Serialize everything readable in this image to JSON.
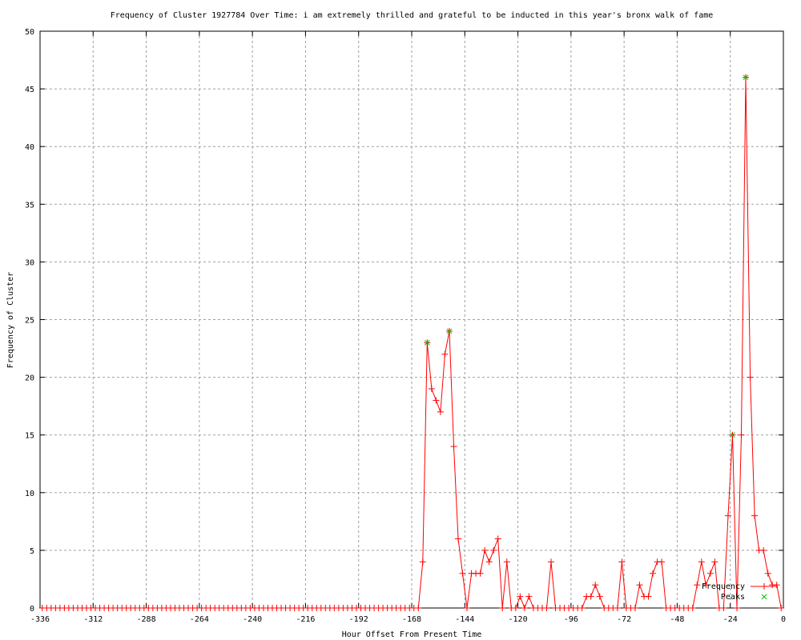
{
  "chart_data": {
    "type": "line",
    "title": "Frequency of Cluster 1927784 Over Time: i am extremely thrilled and grateful to be inducted in this year's bronx walk of fame",
    "xlabel": "Hour Offset From Present Time",
    "ylabel": "Frequency of Cluster",
    "xlim": [
      -336,
      0
    ],
    "ylim": [
      0,
      50
    ],
    "xticks": [
      -336,
      -312,
      -288,
      -264,
      -240,
      -216,
      -192,
      -168,
      -144,
      -120,
      -96,
      -72,
      -48,
      -24,
      0
    ],
    "yticks": [
      0,
      5,
      10,
      15,
      20,
      25,
      30,
      35,
      40,
      45,
      50
    ],
    "grid": true,
    "legend_placement": "bottom-right",
    "series": [
      {
        "name": "Frequency",
        "color": "#ff0000",
        "marker": "plus",
        "x": [
          -335,
          -333,
          -331,
          -329,
          -327,
          -325,
          -323,
          -321,
          -319,
          -317,
          -315,
          -313,
          -311,
          -309,
          -307,
          -305,
          -303,
          -301,
          -299,
          -297,
          -295,
          -293,
          -291,
          -289,
          -287,
          -285,
          -283,
          -281,
          -279,
          -277,
          -275,
          -273,
          -271,
          -269,
          -267,
          -265,
          -263,
          -261,
          -259,
          -257,
          -255,
          -253,
          -251,
          -249,
          -247,
          -245,
          -243,
          -241,
          -239,
          -237,
          -235,
          -233,
          -231,
          -229,
          -227,
          -225,
          -223,
          -221,
          -219,
          -217,
          -215,
          -213,
          -211,
          -209,
          -207,
          -205,
          -203,
          -201,
          -199,
          -197,
          -195,
          -193,
          -191,
          -189,
          -187,
          -185,
          -183,
          -181,
          -179,
          -177,
          -175,
          -173,
          -171,
          -169,
          -167,
          -165,
          -163,
          -161,
          -159,
          -157,
          -155,
          -153,
          -151,
          -149,
          -147,
          -145,
          -143,
          -141,
          -139,
          -137,
          -135,
          -133,
          -131,
          -129,
          -127,
          -125,
          -123,
          -121,
          -119,
          -117,
          -115,
          -113,
          -111,
          -109,
          -107,
          -105,
          -103,
          -101,
          -99,
          -97,
          -95,
          -93,
          -91,
          -89,
          -87,
          -85,
          -83,
          -81,
          -79,
          -77,
          -75,
          -73,
          -71,
          -69,
          -67,
          -65,
          -63,
          -61,
          -59,
          -57,
          -55,
          -53,
          -51,
          -49,
          -47,
          -45,
          -43,
          -41,
          -39,
          -37,
          -35,
          -33,
          -31,
          -29,
          -27,
          -25,
          -23,
          -21,
          -19,
          -17,
          -15,
          -13,
          -11,
          -9,
          -7,
          -5,
          -3,
          -1
        ],
        "values": [
          0,
          0,
          0,
          0,
          0,
          0,
          0,
          0,
          0,
          0,
          0,
          0,
          0,
          0,
          0,
          0,
          0,
          0,
          0,
          0,
          0,
          0,
          0,
          0,
          0,
          0,
          0,
          0,
          0,
          0,
          0,
          0,
          0,
          0,
          0,
          0,
          0,
          0,
          0,
          0,
          0,
          0,
          0,
          0,
          0,
          0,
          0,
          0,
          0,
          0,
          0,
          0,
          0,
          0,
          0,
          0,
          0,
          0,
          0,
          0,
          0,
          0,
          0,
          0,
          0,
          0,
          0,
          0,
          0,
          0,
          0,
          0,
          0,
          0,
          0,
          0,
          0,
          0,
          0,
          0,
          0,
          0,
          0,
          0,
          0,
          0,
          4,
          23,
          19,
          18,
          17,
          22,
          24,
          14,
          6,
          3,
          0,
          3,
          3,
          3,
          5,
          4,
          5,
          6,
          0,
          4,
          0,
          0,
          1,
          0,
          1,
          0,
          0,
          0,
          0,
          4,
          0,
          0,
          0,
          0,
          0,
          0,
          0,
          1,
          1,
          2,
          1,
          0,
          0,
          0,
          0,
          4,
          0,
          0,
          0,
          2,
          1,
          1,
          3,
          4,
          4,
          0,
          0,
          0,
          0,
          0,
          0,
          0,
          2,
          4,
          2,
          3,
          4,
          0,
          0,
          8,
          15,
          0,
          15,
          46,
          20,
          8,
          5,
          5,
          3,
          2,
          2,
          0
        ]
      },
      {
        "name": "Peaks",
        "color": "#00c000",
        "marker": "cross",
        "x": [
          -161,
          -151,
          -23,
          -17
        ],
        "values": [
          23,
          24,
          15,
          46
        ]
      }
    ]
  }
}
